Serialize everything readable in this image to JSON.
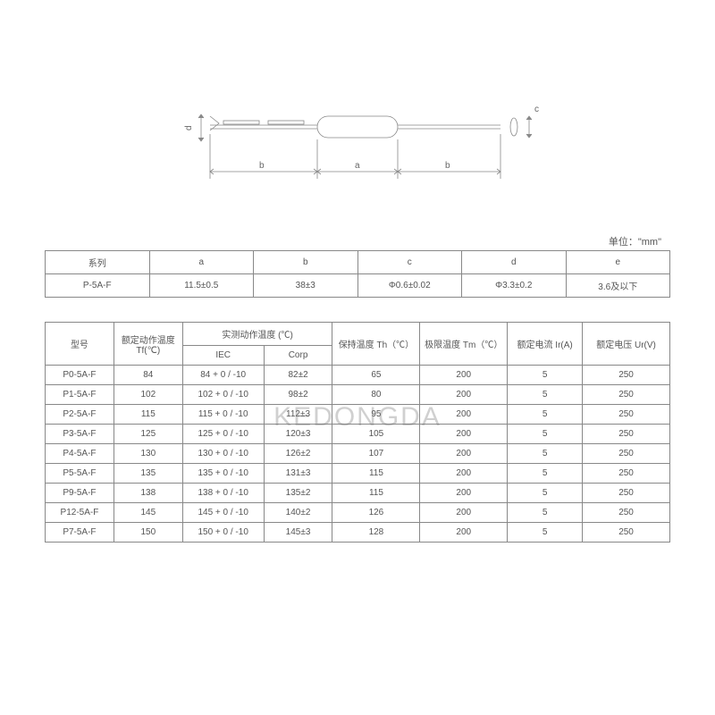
{
  "unit_label": "单位：\"mm\"",
  "watermark": "KEDONGDA",
  "diagram": {
    "labels": {
      "a": "a",
      "b_left": "b",
      "b_right": "b",
      "c": "c",
      "d": "d"
    }
  },
  "table1": {
    "headers": [
      "系列",
      "a",
      "b",
      "c",
      "d",
      "e"
    ],
    "row": [
      "P-5A-F",
      "11.5±0.5",
      "38±3",
      "Φ0.6±0.02",
      "Φ3.3±0.2",
      "3.6及以下"
    ]
  },
  "table2": {
    "header_row1": [
      "型号",
      "额定动作温度 Tf(℃)",
      "实测动作温度 (℃)",
      "保持温度 Th（℃）",
      "极限温度 Tm（℃）",
      "额定电流 Ir(A)",
      "额定电压 Ur(V)"
    ],
    "header_row2": [
      "IEC",
      "Corp"
    ],
    "rows": [
      [
        "P0-5A-F",
        "84",
        "84 + 0 / -10",
        "82±2",
        "65",
        "200",
        "5",
        "250"
      ],
      [
        "P1-5A-F",
        "102",
        "102 + 0 / -10",
        "98±2",
        "80",
        "200",
        "5",
        "250"
      ],
      [
        "P2-5A-F",
        "115",
        "115 + 0 / -10",
        "112±3",
        "95",
        "200",
        "5",
        "250"
      ],
      [
        "P3-5A-F",
        "125",
        "125 + 0 / -10",
        "120±3",
        "105",
        "200",
        "5",
        "250"
      ],
      [
        "P4-5A-F",
        "130",
        "130 + 0 / -10",
        "126±2",
        "107",
        "200",
        "5",
        "250"
      ],
      [
        "P5-5A-F",
        "135",
        "135 + 0 / -10",
        "131±3",
        "115",
        "200",
        "5",
        "250"
      ],
      [
        "P9-5A-F",
        "138",
        "138 + 0 / -10",
        "135±2",
        "115",
        "200",
        "5",
        "250"
      ],
      [
        "P12-5A-F",
        "145",
        "145 + 0 / -10",
        "140±2",
        "126",
        "200",
        "5",
        "250"
      ],
      [
        "P7-5A-F",
        "150",
        "150 + 0 / -10",
        "145±3",
        "128",
        "200",
        "5",
        "250"
      ]
    ]
  },
  "styles": {
    "border_color": "#888888",
    "text_color": "#555555",
    "background": "#ffffff",
    "font_size_cell": 10,
    "font_size_watermark": 30,
    "table1_col_widths_pct": [
      16.66,
      16.66,
      16.66,
      16.66,
      16.66,
      16.66
    ],
    "table2_col_widths_pct": [
      11,
      11,
      13,
      11,
      14,
      14,
      12,
      14
    ]
  }
}
